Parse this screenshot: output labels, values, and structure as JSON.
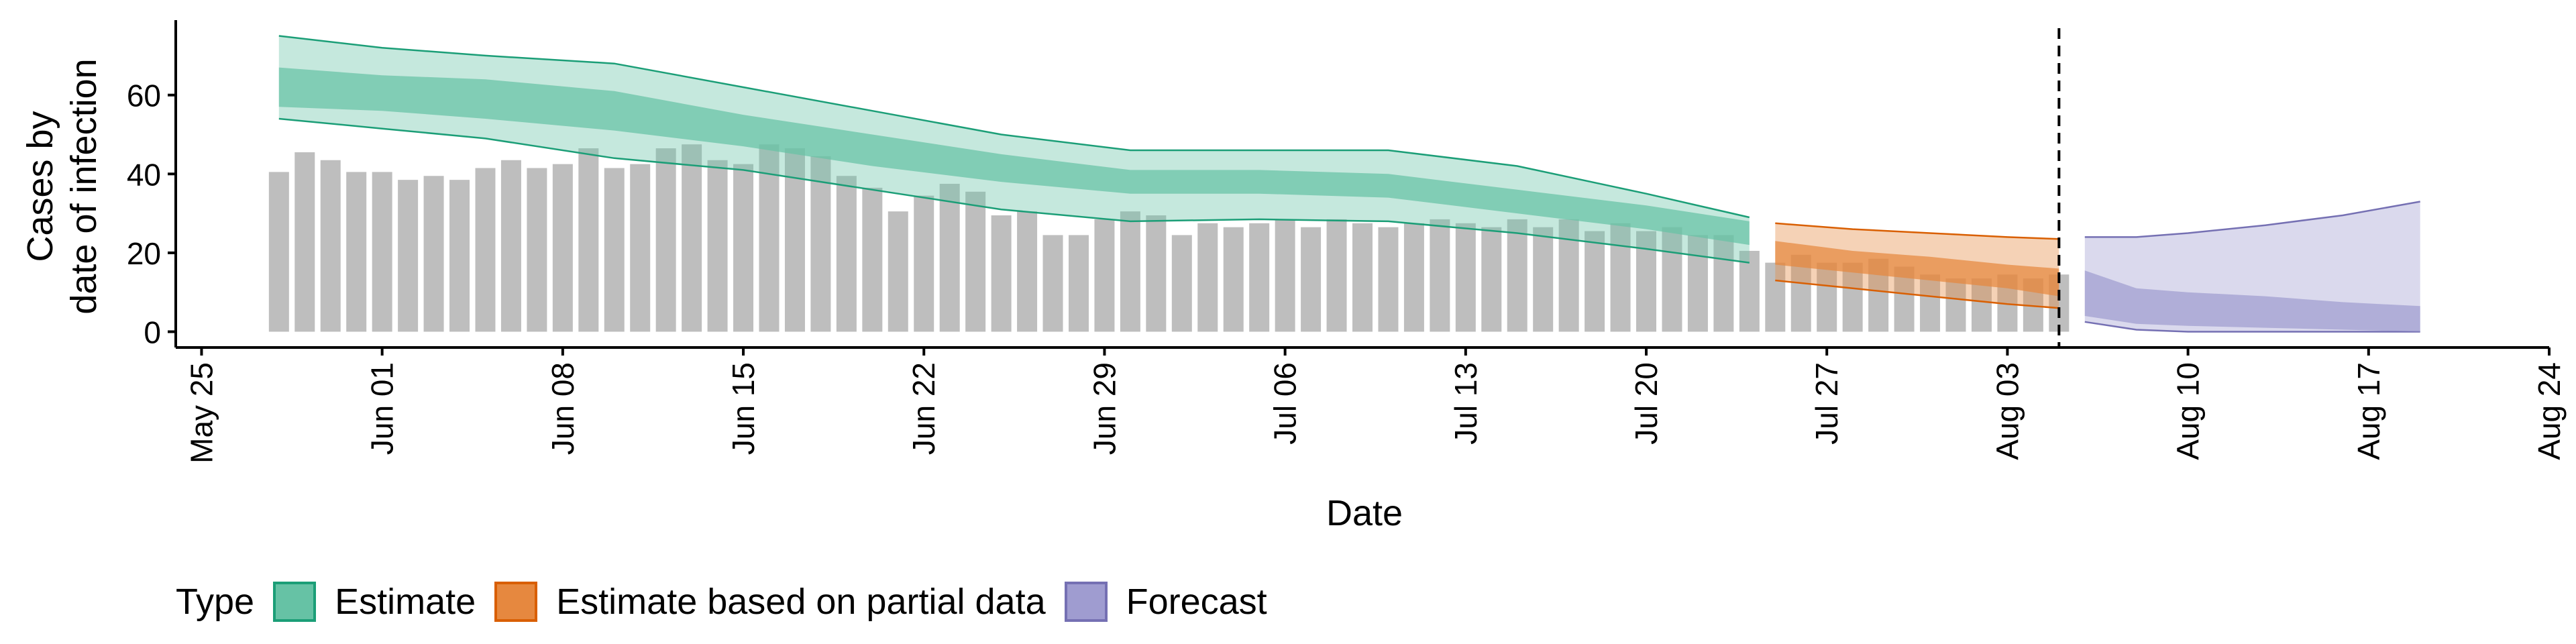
{
  "chart_data": {
    "type": "bar",
    "title": "",
    "xlabel": "Date",
    "ylabel_lines": [
      "Cases by",
      "date of infection"
    ],
    "xlim": [
      "2020-05-24",
      "2020-08-24"
    ],
    "ylim": [
      -4,
      79
    ],
    "x_ticks": [
      {
        "date": "2020-05-25",
        "label": "May 25"
      },
      {
        "date": "2020-06-01",
        "label": "Jun 01"
      },
      {
        "date": "2020-06-08",
        "label": "Jun 08"
      },
      {
        "date": "2020-06-15",
        "label": "Jun 15"
      },
      {
        "date": "2020-06-22",
        "label": "Jun 22"
      },
      {
        "date": "2020-06-29",
        "label": "Jun 29"
      },
      {
        "date": "2020-07-06",
        "label": "Jul 06"
      },
      {
        "date": "2020-07-13",
        "label": "Jul 13"
      },
      {
        "date": "2020-07-20",
        "label": "Jul 20"
      },
      {
        "date": "2020-07-27",
        "label": "Jul 27"
      },
      {
        "date": "2020-08-03",
        "label": "Aug 03"
      },
      {
        "date": "2020-08-10",
        "label": "Aug 10"
      },
      {
        "date": "2020-08-17",
        "label": "Aug 17"
      },
      {
        "date": "2020-08-24",
        "label": "Aug 24"
      }
    ],
    "y_ticks": [
      0,
      20,
      40,
      60
    ],
    "bars": {
      "start_date": "2020-05-28",
      "color": "#bebebe",
      "values": [
        40.5,
        45.5,
        43.5,
        40.5,
        40.5,
        38.5,
        39.5,
        38.5,
        41.5,
        43.5,
        41.5,
        42.5,
        46.5,
        41.5,
        42.5,
        46.5,
        47.5,
        43.5,
        42.5,
        47.5,
        46.5,
        44.5,
        39.5,
        36.5,
        30.5,
        34.5,
        37.5,
        35.5,
        29.5,
        30.5,
        24.5,
        24.5,
        28.5,
        30.5,
        29.5,
        24.5,
        27.5,
        26.5,
        27.5,
        28.5,
        26.5,
        28.5,
        27.5,
        26.5,
        27.5,
        28.5,
        27.5,
        26.5,
        28.5,
        26.5,
        28.5,
        25.5,
        27.5,
        25.5,
        26.5,
        24.5,
        24.5,
        20.5,
        17.5,
        19.5,
        17.5,
        17.5,
        18.5,
        16.5,
        14.5,
        13.5,
        13.5,
        14.5,
        13.5,
        14.5
      ]
    },
    "series": [
      {
        "name": "Estimate",
        "color": "#1b9e77",
        "fill": "#66c2a5",
        "x": [
          "2020-05-28",
          "2020-06-01",
          "2020-06-05",
          "2020-06-10",
          "2020-06-15",
          "2020-06-20",
          "2020-06-25",
          "2020-06-30",
          "2020-07-05",
          "2020-07-10",
          "2020-07-15",
          "2020-07-20",
          "2020-07-24"
        ],
        "median": [
          62,
          60.5,
          59,
          56,
          51,
          46,
          42,
          38,
          38.5,
          37,
          33,
          29,
          25
        ],
        "inner": {
          "lower": [
            57,
            56,
            54,
            51,
            47,
            42,
            38,
            35,
            35,
            34,
            30,
            26,
            22
          ],
          "upper": [
            67,
            65,
            64,
            61,
            55,
            50,
            45,
            41,
            41,
            40,
            36,
            32,
            28
          ]
        },
        "outer": {
          "lower": [
            54,
            51.5,
            49,
            44,
            41,
            36,
            31,
            28,
            28.5,
            28,
            25,
            21,
            17.5
          ],
          "upper": [
            75,
            72,
            70,
            68,
            62,
            56,
            50,
            46,
            46,
            46,
            42,
            35,
            29
          ]
        }
      },
      {
        "name": "Estimate based on partial data",
        "color": "#d95f02",
        "fill": "#e6883f",
        "x": [
          "2020-07-25",
          "2020-07-28",
          "2020-07-31",
          "2020-08-03",
          "2020-08-05"
        ],
        "median": [
          20,
          18,
          16,
          14,
          12
        ],
        "inner": {
          "lower": [
            17,
            15,
            13,
            11,
            9
          ],
          "upper": [
            23,
            20.5,
            19,
            17,
            16
          ]
        },
        "outer": {
          "lower": [
            13,
            11,
            9,
            7,
            6
          ],
          "upper": [
            27.5,
            26,
            25,
            24,
            23.5
          ]
        }
      },
      {
        "name": "Forecast",
        "color": "#7570b3",
        "fill": "#9f9cd0",
        "x": [
          "2020-08-06",
          "2020-08-08",
          "2020-08-10",
          "2020-08-13",
          "2020-08-16",
          "2020-08-19"
        ],
        "median": [
          8.5,
          6,
          5.5,
          4.5,
          3.5,
          3
        ],
        "inner": {
          "lower": [
            4,
            2,
            1.5,
            1,
            0.5,
            0
          ],
          "upper": [
            15.5,
            11,
            10,
            9,
            7.5,
            6.5
          ]
        },
        "outer": {
          "lower": [
            2.5,
            0.5,
            0,
            0,
            0,
            0
          ],
          "upper": [
            24,
            24,
            25,
            27,
            29.5,
            33
          ]
        }
      }
    ],
    "vline": {
      "date": "2020-08-05",
      "style": "dashed"
    },
    "legend": {
      "title": "Type",
      "position": "bottom"
    },
    "grid": false
  }
}
